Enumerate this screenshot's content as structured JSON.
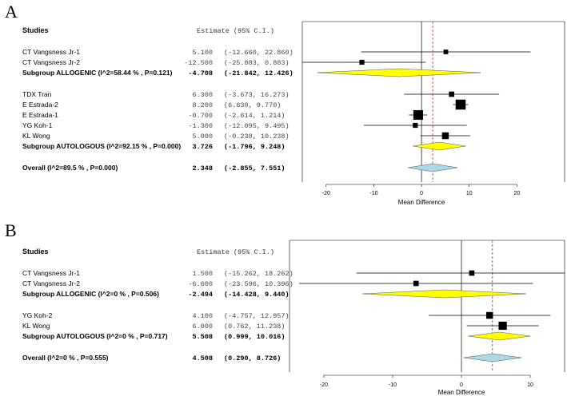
{
  "chart_data": [
    {
      "type": "forest",
      "panel": "A",
      "header_studies": "Studies",
      "header_estimate": "Estimate (95% C.I.)",
      "xlabel": "Mean Difference",
      "xlim": [
        -25,
        30
      ],
      "xticks": [
        "-20",
        "-10",
        "0",
        "10",
        "20"
      ],
      "xtick_values": [
        -20,
        -10,
        0,
        10,
        20
      ],
      "overall_line": 2.348,
      "rows": [
        {
          "label": "CT Vangsness Jr-1",
          "estimate": "5.100",
          "ci": "(-12.660, 22.860)",
          "est": 5.1,
          "lo": -12.66,
          "hi": 22.86,
          "kind": "study",
          "weight": 0.25
        },
        {
          "label": "CT Vangsness Jr-2",
          "estimate": "-12.500",
          "ci": "(-25.883, 0.883)",
          "est": -12.5,
          "lo": -25.883,
          "hi": 0.883,
          "kind": "study",
          "weight": 0.3
        },
        {
          "label": "Subgroup ALLOGENIC (I^2=58.44 % , P=0.121)",
          "estimate": "-4.708",
          "ci": "(-21.842, 12.426)",
          "est": -4.708,
          "lo": -21.842,
          "hi": 12.426,
          "kind": "subgroup"
        },
        {
          "label": "TDX Tran",
          "estimate": "6.300",
          "ci": "(-3.673, 16.273)",
          "est": 6.3,
          "lo": -3.673,
          "hi": 16.273,
          "kind": "study",
          "weight": 0.35
        },
        {
          "label": "E Estrada-2",
          "estimate": "8.200",
          "ci": "(6.630, 9.770)",
          "est": 8.2,
          "lo": 6.63,
          "hi": 9.77,
          "kind": "study",
          "weight": 1.0
        },
        {
          "label": "E Estrada-1",
          "estimate": "-0.700",
          "ci": "(-2.614, 1.214)",
          "est": -0.7,
          "lo": -2.614,
          "hi": 1.214,
          "kind": "study",
          "weight": 0.95
        },
        {
          "label": "YG Koh-1",
          "estimate": "-1.300",
          "ci": "(-12.095, 9.495)",
          "est": -1.3,
          "lo": -12.095,
          "hi": 9.495,
          "kind": "study",
          "weight": 0.3
        },
        {
          "label": "KL Wong",
          "estimate": "5.000",
          "ci": "(-0.238, 10.238)",
          "est": 5.0,
          "lo": -0.238,
          "hi": 10.238,
          "kind": "study",
          "weight": 0.55
        },
        {
          "label": "Subgroup AUTOLOGOUS (I^2=92.15 % , P=0.000)",
          "estimate": "3.726",
          "ci": "(-1.796, 9.248)",
          "est": 3.726,
          "lo": -1.796,
          "hi": 9.248,
          "kind": "subgroup"
        },
        {
          "label": "Overall (I^2=89.5 % , P=0.000)",
          "estimate": "2.348",
          "ci": "(-2.855, 7.551)",
          "est": 2.348,
          "lo": -2.855,
          "hi": 7.551,
          "kind": "overall"
        }
      ]
    },
    {
      "type": "forest",
      "panel": "B",
      "header_studies": "Studies",
      "header_estimate": "Estimate (95% C.I.)",
      "xlabel": "Mean Difference",
      "xlim": [
        -25,
        15
      ],
      "xticks": [
        "-20",
        "-10",
        "0",
        "10"
      ],
      "xtick_values": [
        -20,
        -10,
        0,
        10
      ],
      "overall_line": 4.508,
      "rows": [
        {
          "label": "CT Vangsness Jr-1",
          "estimate": "1.500",
          "ci": "(-15.262, 18.262)",
          "est": 1.5,
          "lo": -15.262,
          "hi": 18.262,
          "kind": "study",
          "weight": 0.35
        },
        {
          "label": "CT Vangsness Jr-2",
          "estimate": "-6.600",
          "ci": "(-23.596, 10.396)",
          "est": -6.6,
          "lo": -23.596,
          "hi": 10.396,
          "kind": "study",
          "weight": 0.35
        },
        {
          "label": "Subgroup ALLOGENIC (I^2=0 % , P=0.506)",
          "estimate": "-2.494",
          "ci": "(-14.428, 9.440)",
          "est": -2.494,
          "lo": -14.428,
          "hi": 9.44,
          "kind": "subgroup"
        },
        {
          "label": "YG Koh-2",
          "estimate": "4.100",
          "ci": "(-4.757, 12.957)",
          "est": 4.1,
          "lo": -4.757,
          "hi": 12.957,
          "kind": "study",
          "weight": 0.55
        },
        {
          "label": "KL Wong",
          "estimate": "6.000",
          "ci": "(0.762, 11.238)",
          "est": 6.0,
          "lo": 0.762,
          "hi": 11.238,
          "kind": "study",
          "weight": 0.75
        },
        {
          "label": "Subgroup AUTOLOGOUS (I^2=0 % , P=0.717)",
          "estimate": "5.508",
          "ci": "(0.999, 10.016)",
          "est": 5.508,
          "lo": 0.999,
          "hi": 10.016,
          "kind": "subgroup"
        },
        {
          "label": "Overall (I^2=0 % , P=0.555)",
          "estimate": "4.508",
          "ci": "(0.290, 8.726)",
          "est": 4.508,
          "lo": 0.29,
          "hi": 8.726,
          "kind": "overall"
        }
      ]
    }
  ],
  "colors": {
    "subgroup_fill": "#ffff00",
    "overall_fill": "#add8e6",
    "reference_line": "#d62728",
    "line": "#000000"
  }
}
